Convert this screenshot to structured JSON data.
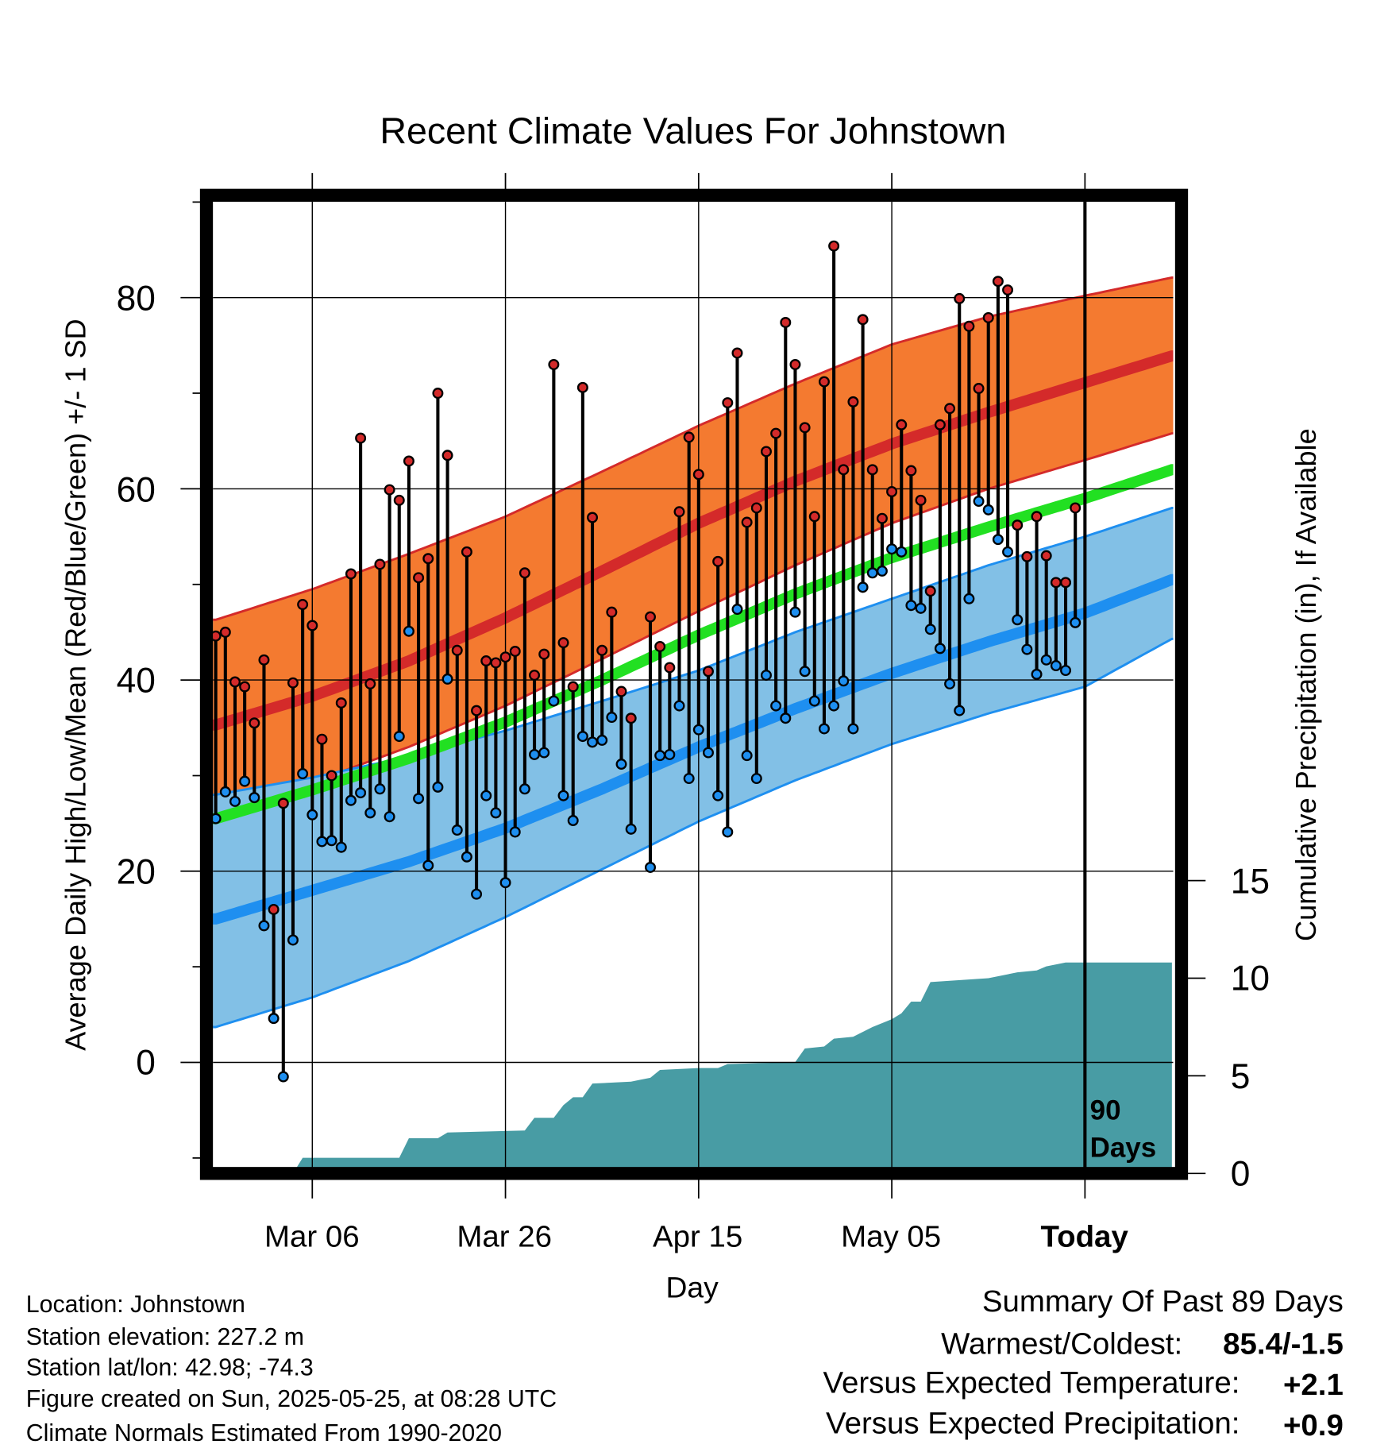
{
  "chart_data": {
    "type": "line",
    "title": "Recent Climate Values For Johnstown",
    "xlabel": "Day",
    "ylabel": "Average Daily High/Low/Mean (Red/Blue/Green) +/- 1 SD",
    "y2label": "Cumulative Precipitation (in), If Available",
    "xticks": [
      {
        "label": "Mar 06",
        "offset": -80
      },
      {
        "label": "Mar 26",
        "offset": -60
      },
      {
        "label": "Apr 15",
        "offset": -40
      },
      {
        "label": "May 05",
        "offset": -20
      },
      {
        "label": "Today",
        "offset": 0
      }
    ],
    "yticks": [
      "0",
      "20",
      "40",
      "60",
      "80"
    ],
    "y2ticks": [
      "0",
      "5",
      "10",
      "15"
    ],
    "ylim": [
      -11.6,
      90.7
    ],
    "y2lim": [
      0,
      50
    ],
    "xlim_days_from_today": [
      -90.3,
      9.1
    ],
    "grid": true,
    "today_marker_label": [
      "90",
      "Days"
    ],
    "colors": {
      "high": "#d42a2a",
      "high_band": "#f47a30",
      "low": "#1e8ff0",
      "low_band": "#82c0e6",
      "mean": "#22e022",
      "precip": "#489ca4"
    },
    "daily_first_offset": -90,
    "highs": [
      44.6,
      45,
      39.8,
      39.3,
      35.5,
      42.1,
      16,
      27.1,
      39.7,
      47.9,
      45.7,
      33.8,
      30,
      37.6,
      51.1,
      65.3,
      39.6,
      52.1,
      59.9,
      58.8,
      62.9,
      50.7,
      52.7,
      70,
      63.5,
      43.1,
      53.4,
      36.8,
      42,
      41.8,
      42.4,
      43,
      51.2,
      40.5,
      42.7,
      73,
      43.9,
      39.3,
      70.6,
      57,
      43.1,
      47.1,
      38.8,
      36,
      null,
      46.6,
      43.5,
      41.3,
      57.6,
      65.4,
      61.5,
      40.9,
      52.4,
      69,
      74.2,
      56.5,
      58,
      63.9,
      65.8,
      77.4,
      73,
      66.4,
      57.1,
      71.2,
      85.4,
      62,
      69.1,
      77.7,
      62,
      56.9,
      59.7,
      66.7,
      61.9,
      58.8,
      49.3,
      66.7,
      68.4,
      79.9,
      77,
      70.5,
      77.9,
      81.7,
      80.8,
      56.2,
      52.9,
      57.1,
      53,
      50.2,
      50.2,
      58
    ],
    "lows": [
      25.5,
      28.3,
      27.3,
      29.4,
      27.7,
      14.3,
      4.6,
      -1.5,
      12.8,
      30.2,
      25.9,
      23.1,
      23.2,
      22.5,
      27.4,
      28.2,
      26.1,
      28.6,
      25.7,
      34.1,
      45.1,
      27.6,
      20.6,
      28.8,
      40.1,
      24.3,
      21.5,
      17.6,
      27.9,
      26.1,
      18.8,
      24.1,
      28.6,
      32.2,
      32.4,
      37.8,
      27.9,
      25.3,
      34.1,
      33.5,
      33.7,
      36.1,
      31.2,
      24.4,
      null,
      20.4,
      32.1,
      32.2,
      37.3,
      29.7,
      34.8,
      32.4,
      27.9,
      24.1,
      47.4,
      32.1,
      29.7,
      40.5,
      37.3,
      36,
      47.1,
      40.9,
      37.8,
      34.9,
      37.3,
      39.9,
      34.9,
      49.7,
      51.2,
      51.4,
      53.7,
      53.4,
      47.8,
      47.5,
      45.3,
      43.3,
      39.6,
      36.8,
      48.5,
      58.7,
      57.8,
      54.7,
      53.4,
      46.3,
      43.2,
      40.6,
      42.1,
      41.5,
      41,
      46
    ],
    "normals": {
      "offsets": [
        -90,
        -80,
        -70,
        -60,
        -50,
        -40,
        -30,
        -20,
        -10,
        0,
        9
      ],
      "high_mean": [
        35.3,
        38.3,
        42,
        46.5,
        51.4,
        56.4,
        60.8,
        64.7,
        68,
        71.1,
        73.9
      ],
      "high_upper": [
        46.3,
        49.5,
        53.2,
        57.1,
        61.8,
        66.6,
        71,
        75.1,
        78,
        80.2,
        82.1
      ],
      "high_lower": [
        26.3,
        29.3,
        33,
        37.3,
        42.2,
        47.2,
        52,
        56.4,
        60,
        63,
        65.8
      ],
      "low_mean": [
        15,
        18,
        21,
        24.5,
        28.6,
        33,
        37,
        40.7,
        44,
        47,
        50.5
      ],
      "low_upper": [
        28,
        29.8,
        32,
        34.7,
        37.8,
        41,
        45,
        48.5,
        52,
        55,
        58
      ],
      "low_lower": [
        3.7,
        6.8,
        10.6,
        15.2,
        20.2,
        25.2,
        29.5,
        33.3,
        36.5,
        39.3,
        44.3
      ],
      "mean": [
        25.5,
        28.5,
        31.8,
        35.6,
        40,
        44.7,
        49,
        52.8,
        56,
        59,
        62
      ]
    },
    "precip_cumulative": [
      [
        -90,
        0
      ],
      [
        -82,
        0
      ],
      [
        -81,
        0.8
      ],
      [
        -71,
        0.8
      ],
      [
        -70,
        1.8
      ],
      [
        -67,
        1.8
      ],
      [
        -66,
        2.1
      ],
      [
        -58,
        2.2
      ],
      [
        -57,
        2.85
      ],
      [
        -55,
        2.85
      ],
      [
        -54,
        3.5
      ],
      [
        -53,
        3.9
      ],
      [
        -52,
        3.9
      ],
      [
        -51,
        4.6
      ],
      [
        -47,
        4.7
      ],
      [
        -46,
        4.8
      ],
      [
        -45,
        4.9
      ],
      [
        -44,
        5.3
      ],
      [
        -40,
        5.4
      ],
      [
        -38,
        5.4
      ],
      [
        -37,
        5.6
      ],
      [
        -30,
        5.7
      ],
      [
        -29,
        6.4
      ],
      [
        -27,
        6.5
      ],
      [
        -26,
        6.9
      ],
      [
        -24,
        7.0
      ],
      [
        -22,
        7.5
      ],
      [
        -20,
        7.9
      ],
      [
        -19,
        8.2
      ],
      [
        -18,
        8.8
      ],
      [
        -17,
        8.8
      ],
      [
        -16,
        9.8
      ],
      [
        -10,
        10.0
      ],
      [
        -8,
        10.2
      ],
      [
        -7,
        10.3
      ],
      [
        -5,
        10.4
      ],
      [
        -4,
        10.6
      ],
      [
        -2,
        10.8
      ],
      [
        9,
        10.8
      ]
    ]
  },
  "info": {
    "location": "Location: Johnstown",
    "elevation": "Station elevation: 227.2 m",
    "latlon": "Station lat/lon: 42.98; -74.3",
    "created": "Figure created on Sun, 2025-05-25, at 08:28 UTC",
    "normals": "Climate Normals Estimated From 1990-2020"
  },
  "summary": {
    "title": "Summary Of Past 89 Days",
    "warm_cold_label": "Warmest/Coldest:",
    "warm_cold_value": "85.4/-1.5",
    "temp_label": "Versus Expected Temperature:",
    "temp_value": "+2.1",
    "temp_color": "#d42a2a",
    "precip_label": "Versus Expected Precipitation:",
    "precip_value": "+0.9",
    "precip_color": "#22cc22"
  }
}
